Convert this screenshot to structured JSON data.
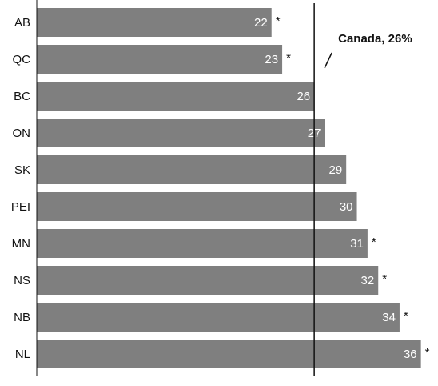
{
  "chart_data": {
    "type": "bar",
    "orientation": "horizontal",
    "categories": [
      "AB",
      "QC",
      "BC",
      "ON",
      "SK",
      "PEI",
      "MN",
      "NS",
      "NB",
      "NL"
    ],
    "values": [
      22,
      23,
      26,
      27,
      29,
      30,
      31,
      32,
      34,
      36
    ],
    "value_labels": [
      "22",
      "23",
      "26",
      "27",
      "29",
      "30",
      "31",
      "32",
      "34",
      "36"
    ],
    "markers": [
      "*",
      "*",
      "",
      "",
      "",
      "",
      "*",
      "*",
      "*",
      "*"
    ],
    "reference_line": {
      "value": 26,
      "label": "Canada, 26%"
    },
    "title": "",
    "xlabel": "",
    "ylabel": "",
    "xlim": [
      0,
      37
    ],
    "grid": false,
    "legend": "none",
    "colors": {
      "bar": "#7f7f7f",
      "axis": "#111111",
      "reference_line": "#111111",
      "value_text": "#ffffff"
    }
  }
}
